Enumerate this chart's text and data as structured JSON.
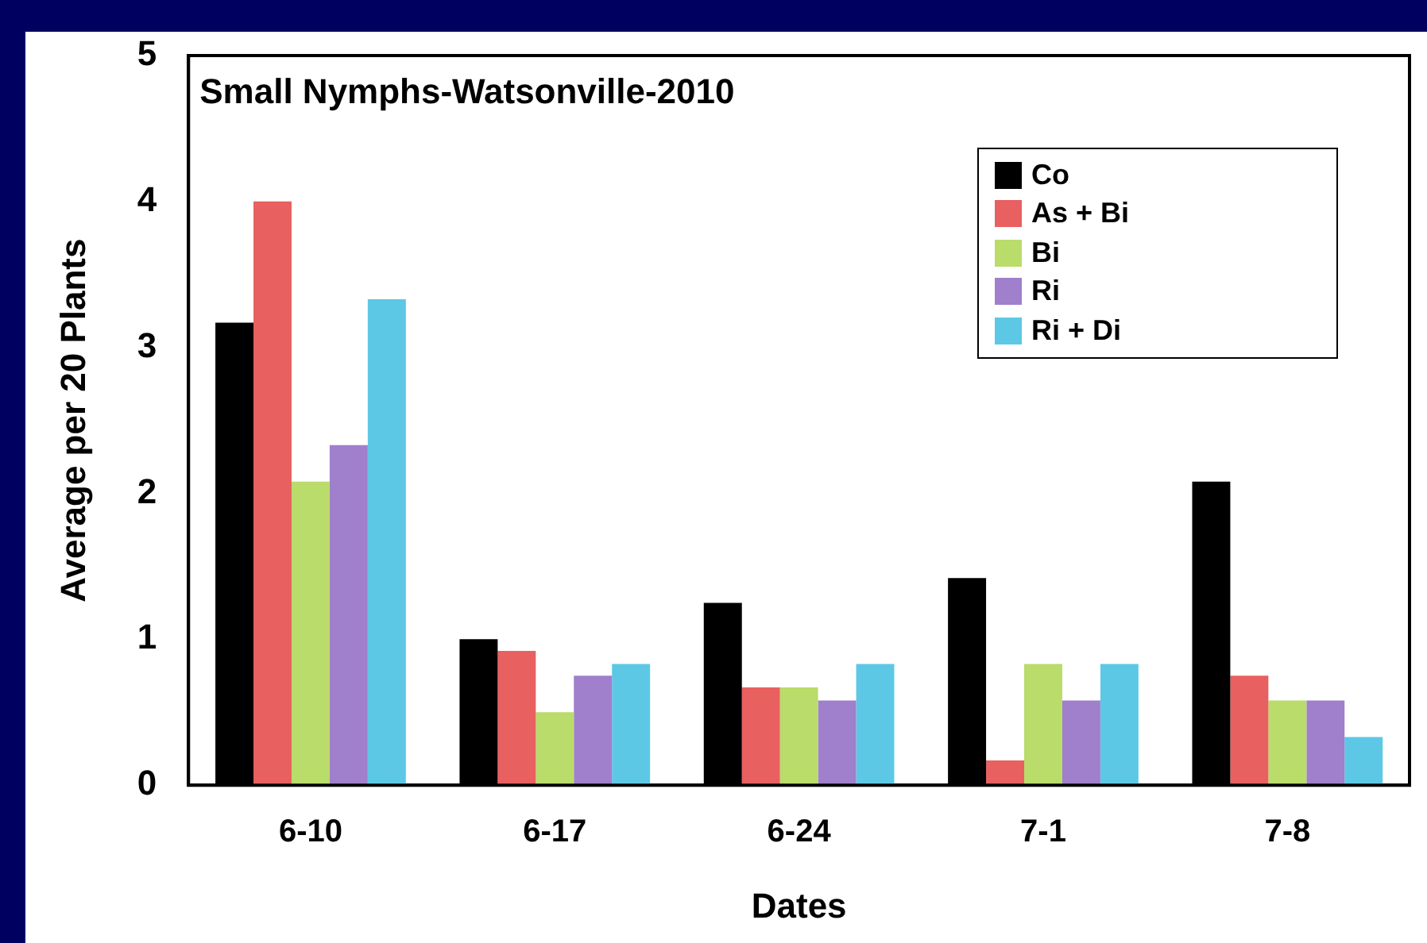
{
  "chart_data": {
    "type": "bar",
    "title": "Small Nymphs-Watsonville-2010",
    "xlabel": "Dates",
    "ylabel": "Average per 20 Plants",
    "categories": [
      "6-10",
      "6-17",
      "6-24",
      "7-1",
      "7-8"
    ],
    "series": [
      {
        "name": "Co",
        "color": "#000000",
        "values": [
          3.17,
          1.0,
          1.25,
          1.42,
          2.08
        ]
      },
      {
        "name": "As + Bi",
        "color": "#e8605f",
        "values": [
          4.0,
          0.92,
          0.67,
          0.17,
          0.75
        ]
      },
      {
        "name": "Bi",
        "color": "#b9dc6a",
        "values": [
          2.08,
          0.5,
          0.67,
          0.83,
          0.58
        ]
      },
      {
        "name": "Ri",
        "color": "#a07fcc",
        "values": [
          2.33,
          0.75,
          0.58,
          0.58,
          0.58
        ]
      },
      {
        "name": "Ri + Di",
        "color": "#5cc8e6",
        "values": [
          3.33,
          0.83,
          0.83,
          0.83,
          0.33
        ]
      }
    ],
    "ylim": [
      0,
      5
    ],
    "yticks": [
      0,
      1,
      2,
      3,
      4,
      5
    ],
    "grid": false,
    "legend": "top right"
  }
}
